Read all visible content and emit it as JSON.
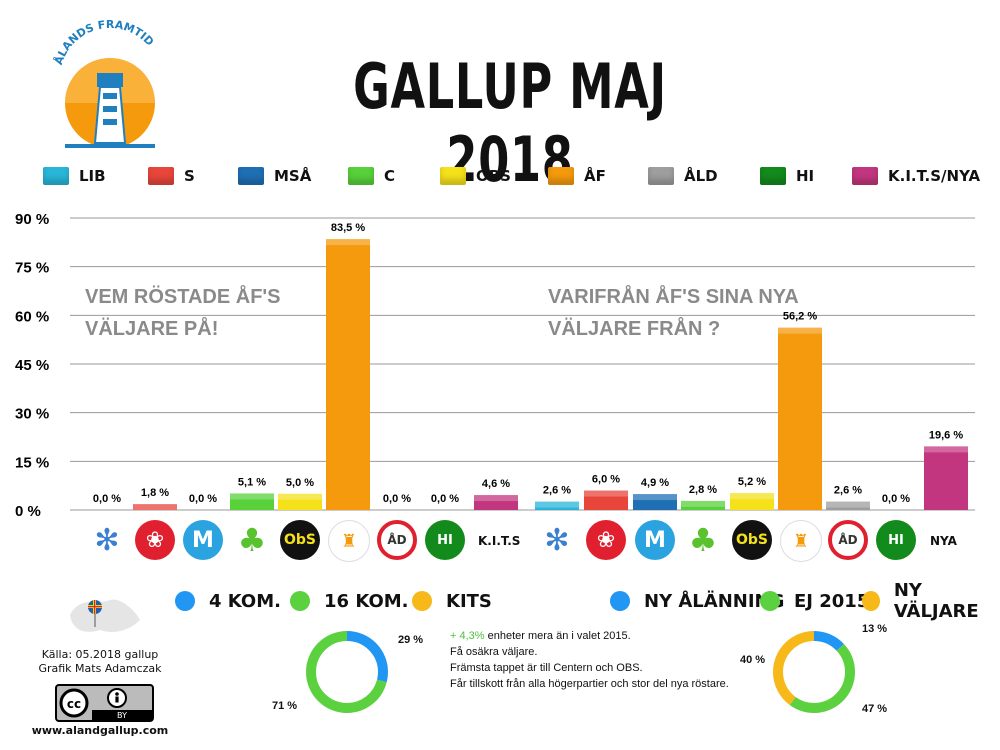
{
  "header": {
    "title": "GALLUP MAJ 2018",
    "logo_text": "ÅLANDS FRAMTID"
  },
  "legend": [
    {
      "label": "LIB",
      "color": "#29b6d9"
    },
    {
      "label": "S",
      "color": "#e8463a"
    },
    {
      "label": "MSÅ",
      "color": "#1f6fb4"
    },
    {
      "label": "C",
      "color": "#58d13a"
    },
    {
      "label": "OBS",
      "color": "#f5e11a"
    },
    {
      "label": "ÅF",
      "color": "#f59a0c"
    },
    {
      "label": "ÅLD",
      "color": "#9e9e9e"
    },
    {
      "label": "HI",
      "color": "#138a1c"
    },
    {
      "label": "K.I.T.S/NYA",
      "color": "#c2367f"
    }
  ],
  "chart_data": {
    "type": "bar",
    "ylim": [
      0,
      90
    ],
    "yticks": [
      "90 %",
      "75 %",
      "60 %",
      "45 %",
      "30 %",
      "15 %",
      "0 %"
    ],
    "grid": true,
    "groups": [
      {
        "annotation_lines": [
          "VEM RÖSTADE ÅF'S",
          "VÄLJARE  PÅ!"
        ],
        "categories": [
          "LIB",
          "S",
          "MSÅ",
          "C",
          "OBS",
          "ÅF",
          "ÅLD",
          "HI",
          "K.I.T.S"
        ],
        "values": [
          0.0,
          1.8,
          0.0,
          5.1,
          5.0,
          83.5,
          0.0,
          0.0,
          4.6
        ],
        "labels": [
          "0,0 %",
          "1,8 %",
          "0,0 %",
          "5,1 %",
          "5,0 %",
          "83,5 %",
          "0,0 %",
          "0,0 %",
          "4,6 %"
        ]
      },
      {
        "annotation_lines": [
          "VARIFRÅN ÅF'S SINA  NYA",
          "VÄLJARE FRÅN ?"
        ],
        "categories": [
          "LIB",
          "S",
          "MSÅ",
          "C",
          "OBS",
          "ÅF",
          "ÅLD",
          "HI",
          "NYA"
        ],
        "values": [
          2.6,
          6.0,
          4.9,
          2.8,
          5.2,
          56.2,
          2.6,
          0.0,
          19.6
        ],
        "labels": [
          "2,6 %",
          "6,0 %",
          "4,9 %",
          "2,8 %",
          "5,2 %",
          "56,2 %",
          "2,6 %",
          "0,0 %",
          "19,6 %"
        ]
      }
    ]
  },
  "party_icons": {
    "left_last": "K.I.T.S",
    "right_last": "NYA",
    "obs": "ObS",
    "ald": "ÅD",
    "hi": "HI"
  },
  "donut_left": {
    "legend": [
      {
        "label": "4 KOM.",
        "color": "#2196f3"
      },
      {
        "label": "16 KOM.",
        "color": "#5bd13f"
      },
      {
        "label": "KITS",
        "color": "#f7b81a"
      }
    ],
    "slices": [
      {
        "value": 29,
        "color": "#2196f3",
        "label": "29 %"
      },
      {
        "value": 71,
        "color": "#5bd13f",
        "label": "71 %"
      }
    ]
  },
  "donut_right": {
    "legend": [
      {
        "label": "NY ÅLÄNNING",
        "color": "#2196f3"
      },
      {
        "label": "EJ 2015",
        "color": "#5bd13f"
      },
      {
        "label": "NY VÄLJARE",
        "color": "#f7b81a"
      }
    ],
    "slices": [
      {
        "value": 13,
        "color": "#2196f3",
        "label": "13 %"
      },
      {
        "value": 47,
        "color": "#5bd13f",
        "label": "47 %"
      },
      {
        "value": 40,
        "color": "#f7b81a",
        "label": "40 %"
      }
    ]
  },
  "notes": {
    "line1_highlight": "+ 4,3%",
    "line1_rest": " enheter  mera än i valet 2015.",
    "line2": "Få osäkra väljare.",
    "line3": "Främsta tappet är till Centern och OBS.",
    "line4": "Får tillskott från alla högerpartier och stor del nya röstare."
  },
  "footer": {
    "source": "Källa: 05.2018 gallup",
    "credit": "Grafik Mats Adamczak",
    "license": "BY",
    "website": "www.alandgallup.com"
  }
}
